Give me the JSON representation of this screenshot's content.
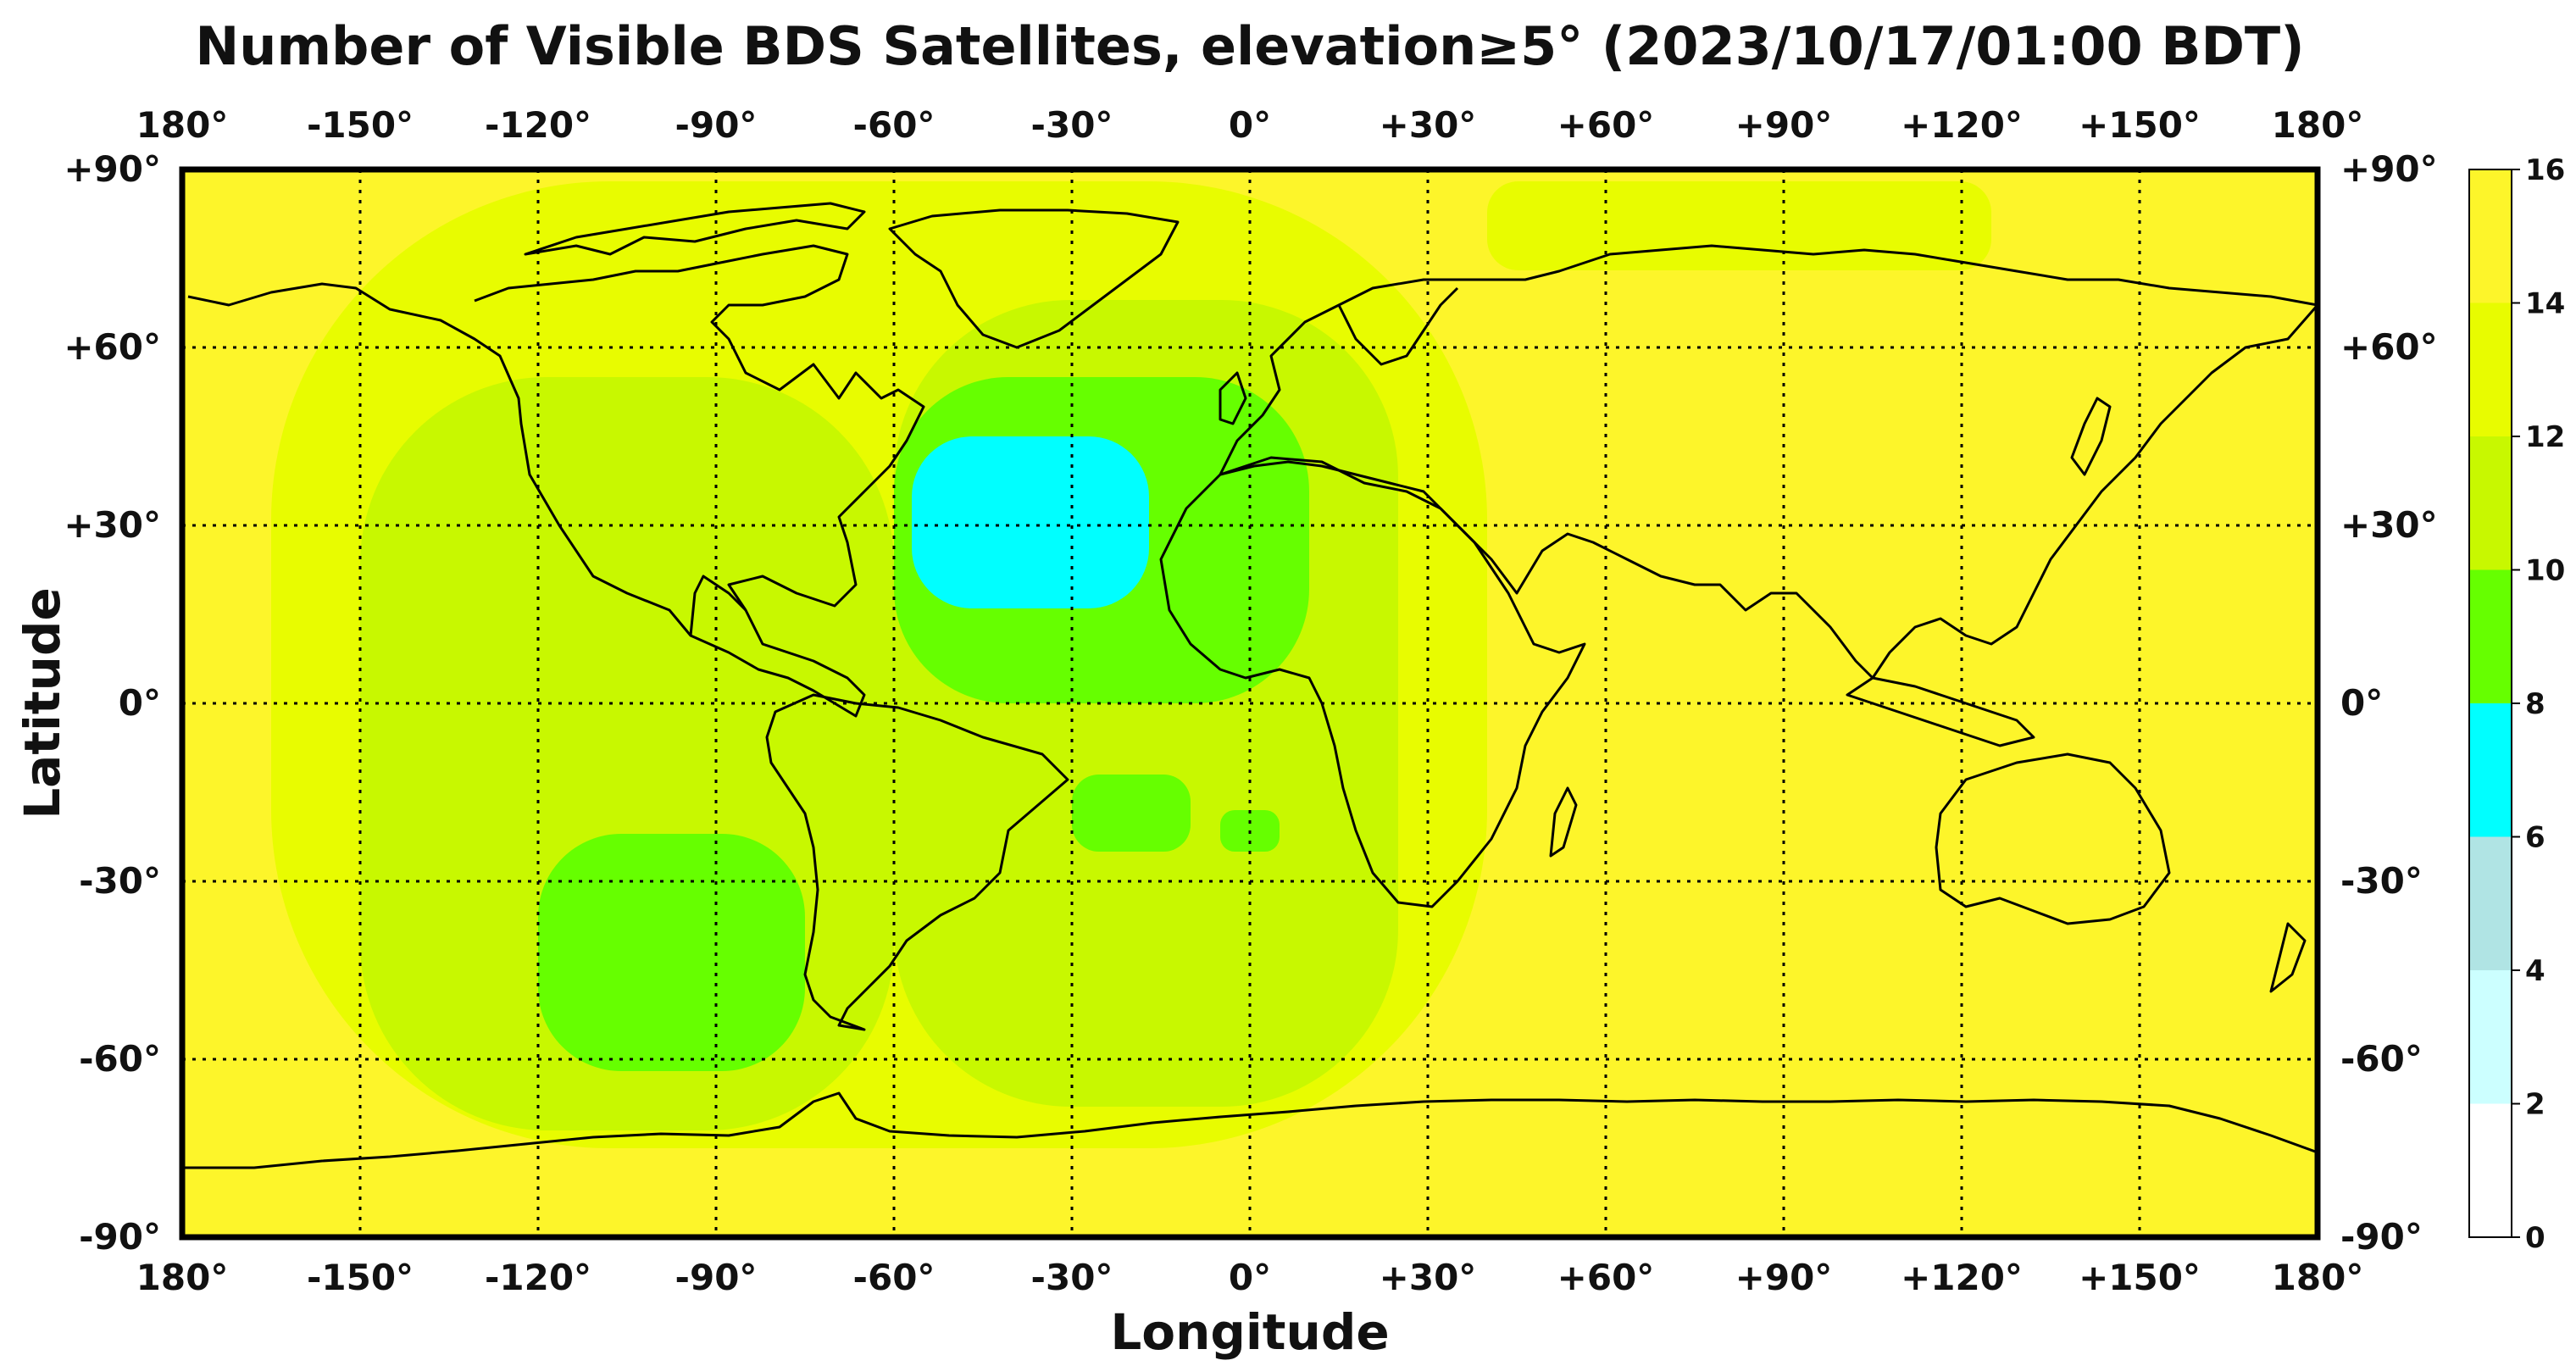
{
  "title": "Number of Visible BDS Satellites, elevation≥5° (2023/10/17/01:00 BDT)",
  "xlabel": "Longitude",
  "ylabel": "Latitude",
  "lon_ticks": [
    {
      "value": -180,
      "label": "180°"
    },
    {
      "value": -150,
      "label": "-150°"
    },
    {
      "value": -120,
      "label": "-120°"
    },
    {
      "value": -90,
      "label": "-90°"
    },
    {
      "value": -60,
      "label": "-60°"
    },
    {
      "value": -30,
      "label": "-30°"
    },
    {
      "value": 0,
      "label": "0°"
    },
    {
      "value": 30,
      "label": "+30°"
    },
    {
      "value": 60,
      "label": "+60°"
    },
    {
      "value": 90,
      "label": "+90°"
    },
    {
      "value": 120,
      "label": "+120°"
    },
    {
      "value": 150,
      "label": "+150°"
    },
    {
      "value": 180,
      "label": "180°"
    }
  ],
  "lat_ticks": [
    {
      "value": 90,
      "label": "+90°"
    },
    {
      "value": 60,
      "label": "+60°"
    },
    {
      "value": 30,
      "label": "+30°"
    },
    {
      "value": 0,
      "label": "0°"
    },
    {
      "value": -30,
      "label": "-30°"
    },
    {
      "value": -60,
      "label": "-60°"
    },
    {
      "value": -90,
      "label": "-90°"
    }
  ],
  "colorbar": {
    "levels": [
      0,
      2,
      4,
      6,
      8,
      10,
      12,
      14,
      16
    ],
    "labels": [
      "0",
      "2",
      "4",
      "6",
      "8",
      "10",
      "12",
      "14",
      "16"
    ],
    "colors": [
      "#ffffff",
      "#ccffff",
      "#b0e4e4",
      "#00ffff",
      "#66ff00",
      "#c8f800",
      "#e8fc00",
      "#fdf52a"
    ]
  },
  "chart_data": {
    "type": "heatmap",
    "title": "Number of Visible BDS Satellites, elevation≥5° (2023/10/17/01:00 BDT)",
    "xlabel": "Longitude",
    "ylabel": "Latitude",
    "xlim": [
      -180,
      180
    ],
    "ylim": [
      -90,
      90
    ],
    "value_range": [
      0,
      16
    ],
    "background_value": 15,
    "regions": [
      {
        "value": 13,
        "lon": [
          -165,
          40
        ],
        "lat": [
          -75,
          88
        ]
      },
      {
        "value": 13,
        "lon": [
          40,
          125
        ],
        "lat": [
          73,
          88
        ]
      },
      {
        "value": 11,
        "lon": [
          -150,
          -60
        ],
        "lat": [
          -72,
          55
        ]
      },
      {
        "value": 11,
        "lon": [
          -60,
          25
        ],
        "lat": [
          -68,
          68
        ]
      },
      {
        "value": 9,
        "lon": [
          -120,
          -75
        ],
        "lat": [
          -62,
          -22
        ]
      },
      {
        "value": 9,
        "lon": [
          -60,
          10
        ],
        "lat": [
          0,
          55
        ]
      },
      {
        "value": 9,
        "lon": [
          -30,
          -10
        ],
        "lat": [
          -25,
          -12
        ]
      },
      {
        "value": 9,
        "lon": [
          -5,
          5
        ],
        "lat": [
          -25,
          -18
        ]
      },
      {
        "value": 7,
        "lon": [
          -57,
          -17
        ],
        "lat": [
          16,
          45
        ]
      }
    ],
    "grid": true,
    "grid_style": "dotted"
  }
}
